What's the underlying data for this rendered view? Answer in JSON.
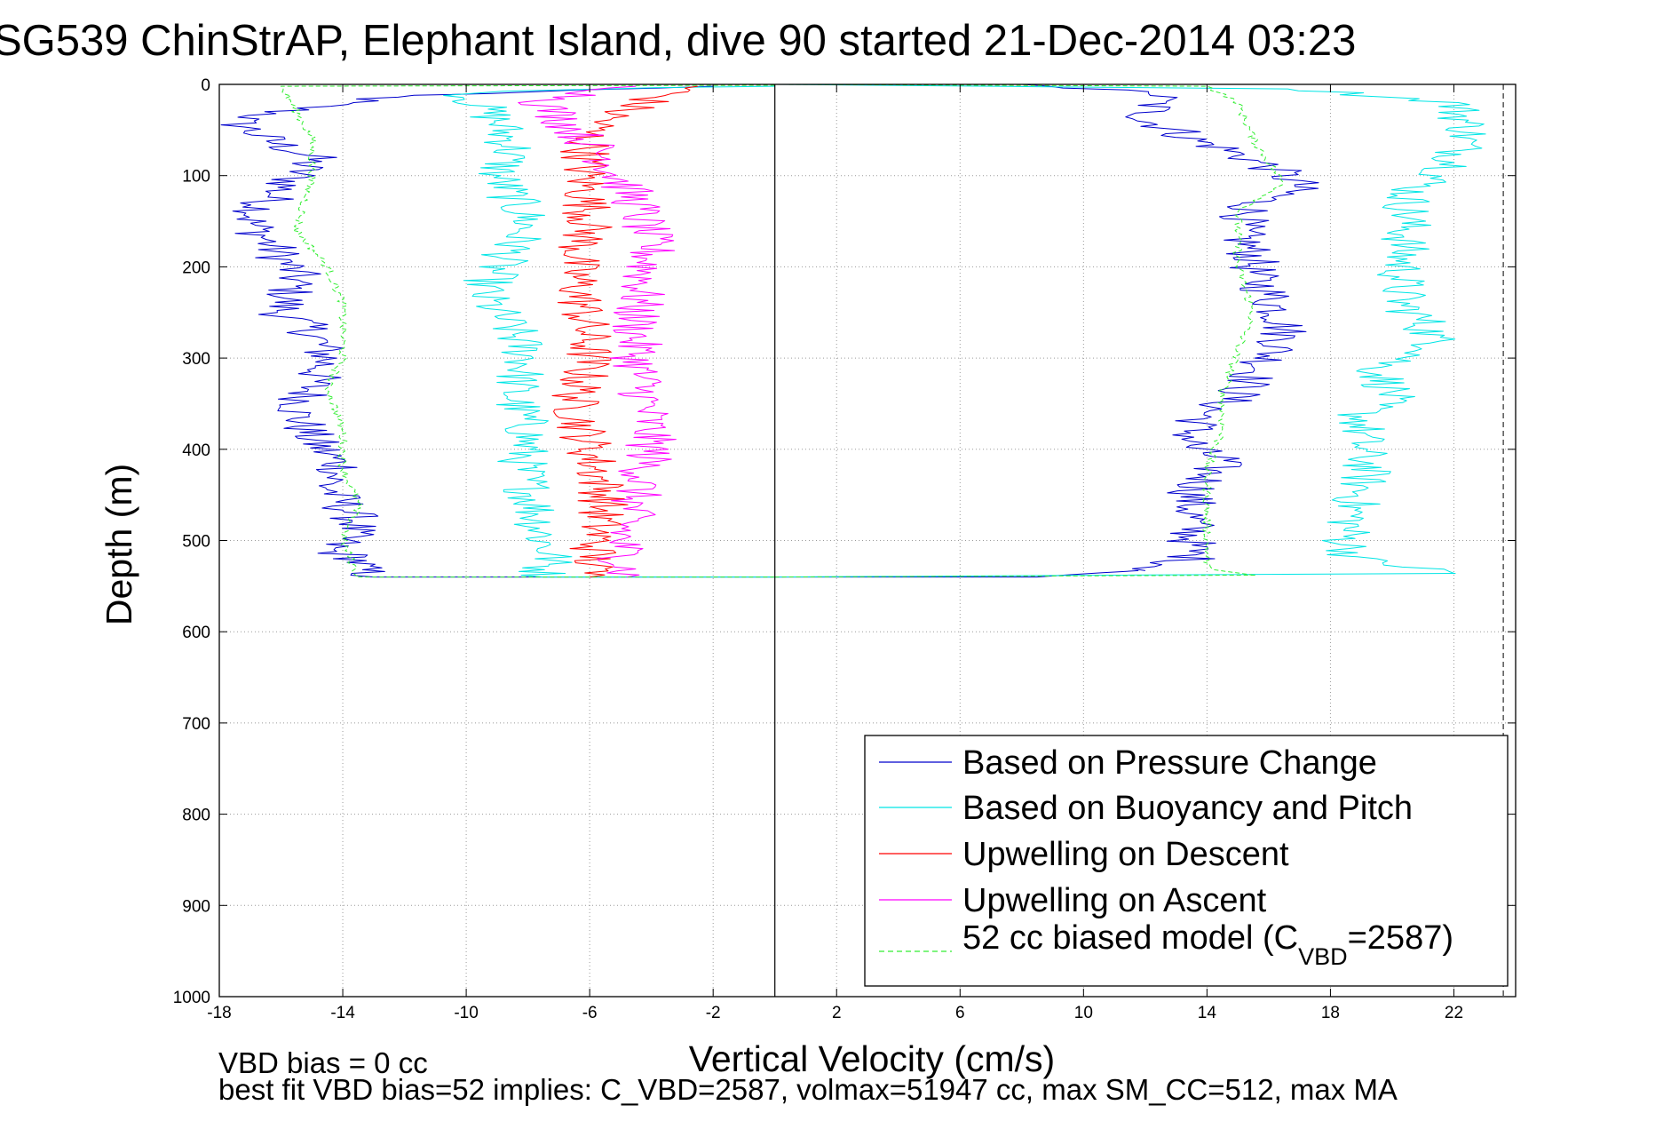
{
  "chart_data": {
    "type": "line",
    "title": "SG539 ChinStrAP, Elephant Island, dive 90 started 21-Dec-2014 03:23",
    "xlabel": "Vertical Velocity (cm/s)",
    "ylabel": "Depth (m)",
    "xlim": [
      -18,
      24
    ],
    "ylim": [
      0,
      1000
    ],
    "y_reversed": true,
    "grid": true,
    "x_ticks": [
      -18,
      -14,
      -10,
      -6,
      -2,
      2,
      6,
      10,
      14,
      18,
      22
    ],
    "y_ticks": [
      0,
      100,
      200,
      300,
      400,
      500,
      600,
      700,
      800,
      900,
      1000
    ],
    "x_tick_labels": [
      "-18",
      "-14",
      "-10",
      "-6",
      "-2",
      "2",
      "6",
      "10",
      "14",
      "18",
      "22"
    ],
    "y_tick_labels": [
      "0",
      "100",
      "200",
      "300",
      "400",
      "500",
      "600",
      "700",
      "800",
      "900",
      "1000"
    ],
    "zero_line_x": 0,
    "right_dashed_x": 23.6,
    "legend_position": "bottom-right",
    "legend": {
      "entries": [
        {
          "series": 0,
          "text": "Based on Pressure Change"
        },
        {
          "series": 1,
          "text": "Based on Buoyancy and Pitch"
        },
        {
          "series": 2,
          "text": "Upwelling on Descent"
        },
        {
          "series": 3,
          "text": "Upwelling on Ascent"
        },
        {
          "series": 4,
          "text_main": "52 cc biased model (C",
          "text_sub": "VBD",
          "text_end": "=2587)"
        }
      ]
    },
    "series": [
      {
        "name": "Based on Pressure Change",
        "color": "#0000cc",
        "style": "solid",
        "segments": [
          {
            "x": [
              -2,
              -8,
              -12,
              -14,
              -16,
              -17.5,
              -16.5,
              -15,
              -15.5,
              -16.5,
              -17,
              -16,
              -15.5,
              -16,
              -15,
              -14.5,
              -15,
              -15.5,
              -15,
              -14,
              -14.5,
              -14,
              -13.5,
              -14,
              -14.5,
              -13.5,
              -13.5,
              -13
            ],
            "y": [
              2,
              8,
              12,
              20,
              30,
              40,
              60,
              80,
              100,
              130,
              150,
              190,
              210,
              250,
              270,
              300,
              330,
              360,
              390,
              420,
              440,
              460,
              480,
              500,
              510,
              520,
              530,
              540
            ]
          },
          {
            "x": [
              -13,
              0
            ],
            "y": [
              540,
              540
            ]
          },
          {
            "x": [
              0,
              5,
              8,
              12.5,
              12,
              13,
              13.5,
              14.5,
              16,
              17,
              16.5,
              15.5,
              15,
              15.5,
              15.5,
              16,
              16.5,
              16.5,
              16,
              15.5,
              15,
              14,
              13.5,
              13.5,
              14.5,
              14,
              13.5,
              13.5,
              13.5,
              13.5,
              12
            ],
            "y": [
              0,
              0,
              0,
              10,
              40,
              50,
              60,
              70,
              90,
              110,
              120,
              130,
              160,
              190,
              210,
              230,
              260,
              280,
              300,
              320,
              340,
              360,
              380,
              400,
              410,
              430,
              450,
              470,
              490,
              520,
              533
            ]
          },
          {
            "x": [
              12,
              8,
              0
            ],
            "y": [
              533,
              540,
              540
            ]
          }
        ]
      },
      {
        "name": "Based on Buoyancy and Pitch",
        "color": "#00e5e5",
        "style": "solid",
        "segments": [
          {
            "x": [
              0,
              -6,
              -10,
              -9,
              -8.5,
              -9,
              -8,
              -8.5,
              -9,
              -9.5,
              -8.5,
              -8,
              -8.5,
              -8,
              -8.2,
              -7.8,
              -7.5,
              -7.2,
              -7.5,
              -7.5
            ],
            "y": [
              2,
              5,
              10,
              40,
              70,
              100,
              150,
              180,
              200,
              230,
              270,
              300,
              340,
              380,
              420,
              460,
              500,
              520,
              530,
              540
            ]
          },
          {
            "x": [
              -7.5,
              0
            ],
            "y": [
              540,
              540
            ]
          },
          {
            "x": [
              0,
              17,
              22,
              22.5,
              22,
              20.5,
              20.5,
              20.3,
              20.3,
              21,
              21.5,
              19.5,
              20,
              19,
              19,
              19.2,
              18.8,
              18.5,
              18.8,
              22
            ],
            "y": [
              0,
              5,
              20,
              50,
              90,
              120,
              150,
              200,
              240,
              260,
              290,
              310,
              340,
              360,
              400,
              420,
              460,
              500,
              520,
              536
            ]
          },
          {
            "x": [
              22,
              0
            ],
            "y": [
              536,
              540
            ]
          }
        ]
      },
      {
        "name": "Upwelling on Descent",
        "color": "#ff0000",
        "style": "solid",
        "segments": [
          {
            "x": [
              -2.5,
              -3.5,
              -5,
              -6,
              -6.2,
              -6,
              -6.5,
              -6.2,
              -6,
              -6.5,
              -6,
              -5.5,
              -5.8,
              -6
            ],
            "y": [
              2,
              10,
              30,
              50,
              100,
              150,
              200,
              250,
              300,
              350,
              400,
              450,
              500,
              540
            ]
          }
        ]
      },
      {
        "name": "Upwelling on Ascent",
        "color": "#ff00ff",
        "style": "solid",
        "segments": [
          {
            "x": [
              -4.5,
              -6,
              -7.5,
              -5.5,
              -4.5,
              -4,
              -4.5,
              -4.5,
              -4.2,
              -4,
              -4.5,
              -5,
              -4.8
            ],
            "y": [
              2,
              10,
              20,
              80,
              130,
              180,
              250,
              300,
              350,
              400,
              450,
              500,
              540
            ]
          }
        ]
      },
      {
        "name": "52 cc biased model (CVBD=2587)",
        "color": "#33ee33",
        "style": "dashed",
        "segments": [
          {
            "x": [
              0,
              -16,
              -15.5,
              -15,
              -15,
              -15.5,
              -14.5,
              -14,
              -14,
              -14.5,
              -14,
              -14,
              -13.5,
              -14,
              -13.5
            ],
            "y": [
              1,
              2,
              30,
              60,
              100,
              160,
              200,
              240,
              300,
              330,
              380,
              420,
              460,
              500,
              540
            ]
          },
          {
            "x": [
              -13.5,
              0
            ],
            "y": [
              540,
              540
            ]
          },
          {
            "x": [
              0,
              14,
              15,
              15.5,
              16.5,
              15,
              15,
              15.5,
              15,
              14.5,
              14.5,
              14,
              14,
              14,
              14,
              15.5
            ],
            "y": [
              0,
              2,
              20,
              60,
              110,
              140,
              200,
              250,
              290,
              340,
              380,
              420,
              460,
              500,
              530,
              538
            ]
          },
          {
            "x": [
              15.5,
              0
            ],
            "y": [
              538,
              540
            ]
          }
        ]
      }
    ]
  },
  "annotations": {
    "line1": "VBD bias = 0 cc",
    "line2": "best fit VBD bias=52 implies: C_VBD=2587, volmax=51947 cc, max SM_CC=512, max MA"
  }
}
